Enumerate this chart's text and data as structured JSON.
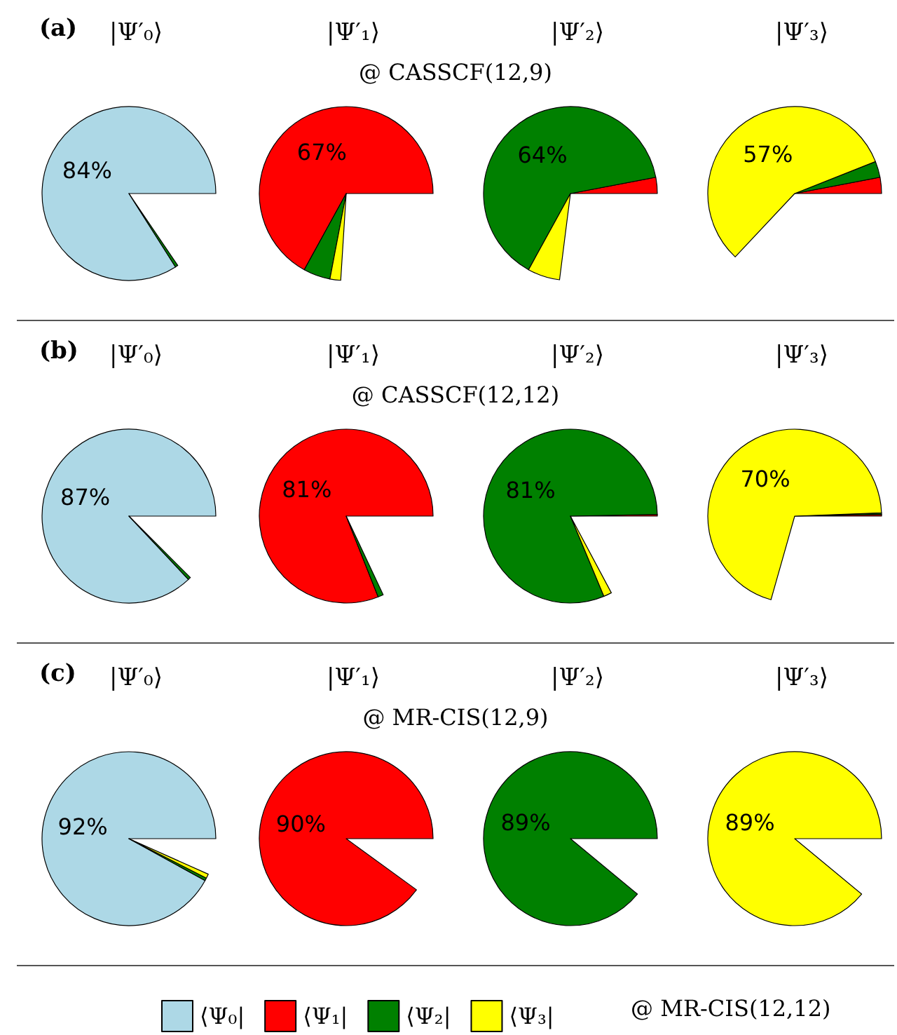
{
  "chart_data": [
    {
      "type": "pie",
      "title": "|Ψ′₀⟩",
      "subtitle": "@ CASSCF(12,9)",
      "annotations": [
        "(a)"
      ],
      "legend": "bottom",
      "legend_title": "@ MR-CIS(12,12)",
      "categories": [
        "⟨Ψ₀|",
        "⟨Ψ₁|",
        "⟨Ψ₂|",
        "⟨Ψ₃|"
      ],
      "values": [
        84,
        null,
        0.5,
        0
      ],
      "colors": [
        "#add8e6",
        "#ff0000",
        "#008000",
        "#ffff00"
      ],
      "value_labels": [
        "84%",
        null,
        null,
        null
      ]
    },
    {
      "type": "pie",
      "title": "|Ψ′₁⟩",
      "categories": [
        null,
        null,
        null,
        null
      ],
      "values": [
        0,
        67,
        5,
        2
      ],
      "colors": [
        "#add8e6",
        "#ff0000",
        "#008000",
        "#ffff00"
      ],
      "value_labels": [
        null,
        "67%",
        null,
        null
      ]
    },
    {
      "type": "pie",
      "title": "|Ψ′₂⟩",
      "categories": [
        null,
        null,
        null,
        null
      ],
      "values": [
        0,
        3,
        64,
        6
      ],
      "colors": [
        "#add8e6",
        "#ff0000",
        "#008000",
        "#ffff00"
      ],
      "value_labels": [
        null,
        null,
        "64%",
        null
      ]
    },
    {
      "type": "pie",
      "title": "|Ψ′₃⟩",
      "categories": [
        null,
        null,
        null,
        null
      ],
      "values": [
        0,
        3,
        3,
        57
      ],
      "colors": [
        "#add8e6",
        "#ff0000",
        "#008000",
        "#ffff00"
      ],
      "value_labels": [
        null,
        null,
        null,
        "57%"
      ]
    },
    {
      "type": "pie",
      "title": "|Ψ′₀⟩",
      "subtitle": "@ CASSCF(12,12)",
      "annotations": [
        "(b)"
      ],
      "categories": [
        null,
        null,
        null,
        null
      ],
      "values": [
        87,
        null,
        0.5,
        0
      ],
      "colors": [
        "#add8e6",
        "#ff0000",
        "#008000",
        "#ffff00"
      ],
      "value_labels": [
        "87%",
        null,
        null,
        null
      ]
    },
    {
      "type": "pie",
      "title": "|Ψ′₁⟩",
      "categories": [
        null,
        null,
        null,
        null
      ],
      "values": [
        0,
        81,
        1,
        0
      ],
      "colors": [
        "#add8e6",
        "#ff0000",
        "#008000",
        "#ffff00"
      ],
      "value_labels": [
        null,
        "81%",
        null,
        null
      ]
    },
    {
      "type": "pie",
      "title": "|Ψ′₂⟩",
      "categories": [
        null,
        null,
        null,
        null
      ],
      "values": [
        0,
        0.3,
        81,
        1.5
      ],
      "colors": [
        "#add8e6",
        "#ff0000",
        "#008000",
        "#ffff00"
      ],
      "value_labels": [
        null,
        null,
        "81%",
        null
      ]
    },
    {
      "type": "pie",
      "title": "|Ψ′₃⟩",
      "categories": [
        null,
        null,
        null,
        null
      ],
      "values": [
        0,
        0.3,
        0.3,
        70
      ],
      "colors": [
        "#add8e6",
        "#ff0000",
        "#008000",
        "#ffff00"
      ],
      "value_labels": [
        null,
        null,
        null,
        "70%"
      ]
    },
    {
      "type": "pie",
      "title": "|Ψ′₀⟩",
      "subtitle": "@ MR-CIS(12,9)",
      "annotations": [
        "(c)"
      ],
      "categories": [
        null,
        null,
        null,
        null
      ],
      "values": [
        92,
        0,
        0.5,
        0.8
      ],
      "colors": [
        "#add8e6",
        "#ff0000",
        "#008000",
        "#ffff00"
      ],
      "value_labels": [
        "92%",
        null,
        null,
        null
      ]
    },
    {
      "type": "pie",
      "title": "|Ψ′₁⟩",
      "categories": [
        null,
        null,
        null,
        null
      ],
      "values": [
        0,
        90,
        0,
        0
      ],
      "colors": [
        "#add8e6",
        "#ff0000",
        "#008000",
        "#ffff00"
      ],
      "value_labels": [
        null,
        "90%",
        null,
        null
      ]
    },
    {
      "type": "pie",
      "title": "|Ψ′₂⟩",
      "categories": [
        null,
        null,
        null,
        null
      ],
      "values": [
        0,
        0,
        89,
        0
      ],
      "colors": [
        "#add8e6",
        "#ff0000",
        "#008000",
        "#ffff00"
      ],
      "value_labels": [
        null,
        null,
        "89%",
        null
      ]
    },
    {
      "type": "pie",
      "title": "|Ψ′₃⟩",
      "categories": [
        null,
        null,
        null,
        null
      ],
      "values": [
        0,
        0,
        0,
        89
      ],
      "colors": [
        "#add8e6",
        "#ff0000",
        "#008000",
        "#ffff00"
      ],
      "value_labels": [
        null,
        null,
        null,
        "89%"
      ]
    }
  ]
}
